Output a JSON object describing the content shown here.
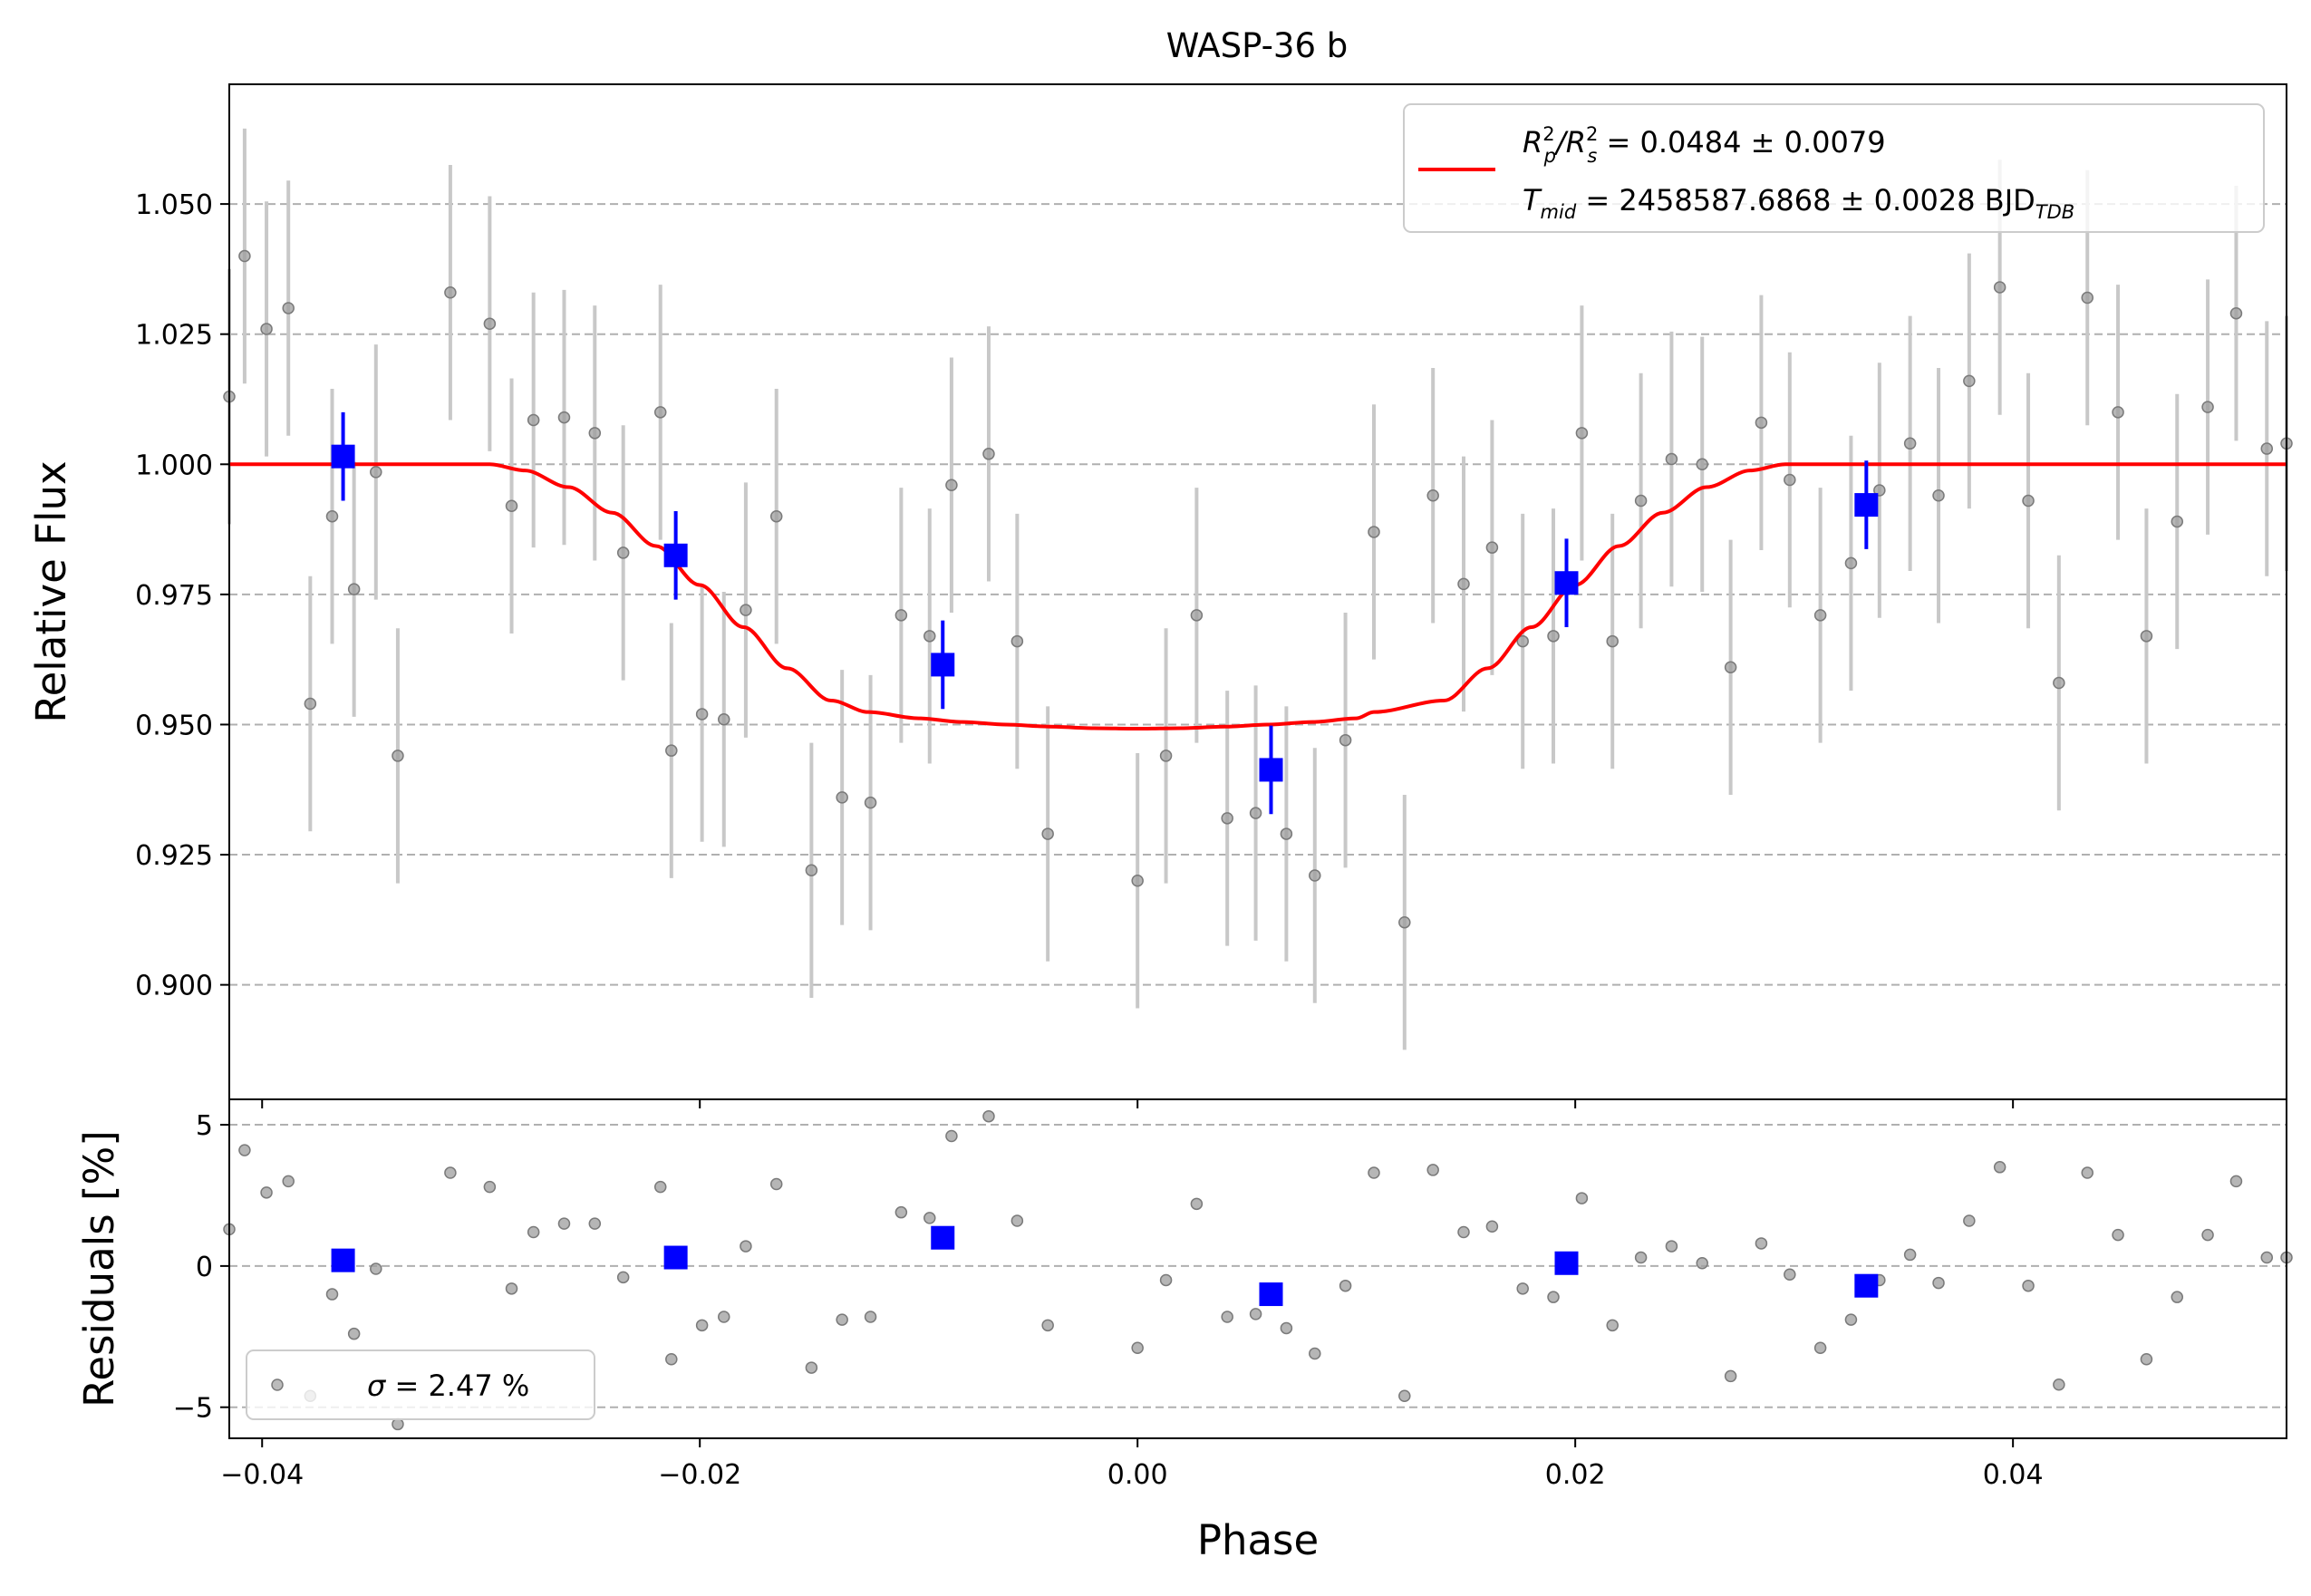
{
  "chart_data": [
    {
      "type": "scatter",
      "title": "WASP-36 b",
      "xlabel": "",
      "ylabel": "Relative Flux",
      "xlim": [
        -0.0415,
        0.0525
      ],
      "ylim": [
        0.878,
        1.073
      ],
      "xticks": [
        -0.04,
        -0.02,
        0.0,
        0.02,
        0.04
      ],
      "xtick_labels": [
        "−0.04",
        "−0.02",
        "0.00",
        "0.02",
        "0.04"
      ],
      "yticks": [
        0.9,
        0.925,
        0.95,
        0.975,
        1.0,
        1.025,
        1.05
      ],
      "ytick_labels": [
        "0.900",
        "0.925",
        "0.950",
        "0.975",
        "1.000",
        "1.025",
        "1.050"
      ],
      "grid": "horizontal dashed",
      "legend_position": "top-right",
      "colors": {
        "data": "#9e9e9e",
        "errorbar": "#c8c8c8",
        "binned": "#0000ff",
        "model": "#ff0000",
        "grid": "#b0b0b0"
      },
      "series": [
        {
          "kind": "raw",
          "err": 0.0245,
          "x": [
            -0.0415,
            -0.0408,
            -0.0398,
            -0.0388,
            -0.0378,
            -0.0368,
            -0.0358,
            -0.0348,
            -0.0338,
            -0.0314,
            -0.0296,
            -0.0286,
            -0.0276,
            -0.0262,
            -0.0248,
            -0.0235,
            -0.0218,
            -0.0213,
            -0.0199,
            -0.0189,
            -0.0179,
            -0.0165,
            -0.0149,
            -0.0135,
            -0.0122,
            -0.0108,
            -0.0095,
            -0.0085,
            -0.0068,
            -0.0055,
            -0.0041,
            0.0,
            0.0013,
            0.0027,
            0.0041,
            0.0054,
            0.0068,
            0.0081,
            0.0095,
            0.0108,
            0.0122,
            0.0135,
            0.0149,
            0.0162,
            0.0176,
            0.019,
            0.0203,
            0.0217,
            0.023,
            0.0244,
            0.0258,
            0.0271,
            0.0285,
            0.0298,
            0.0312,
            0.0326,
            0.0339,
            0.0353,
            0.0366,
            0.038,
            0.0394,
            0.0407,
            0.0421,
            0.0434,
            0.0448,
            0.0461,
            0.0475,
            0.0489,
            0.0502,
            0.0516,
            0.0525
          ],
          "y": [
            1.013,
            1.04,
            1.026,
            1.03,
            0.954,
            0.99,
            0.976,
            0.9985,
            0.944,
            1.033,
            1.027,
            0.992,
            1.0085,
            1.009,
            1.006,
            0.983,
            1.01,
            0.945,
            0.952,
            0.951,
            0.972,
            0.99,
            0.922,
            0.936,
            0.935,
            0.971,
            0.967,
            0.996,
            1.002,
            0.966,
            0.929,
            0.92,
            0.944,
            0.971,
            0.932,
            0.933,
            0.929,
            0.921,
            0.947,
            0.987,
            0.912,
            0.994,
            0.977,
            0.984,
            0.966,
            0.967,
            1.006,
            0.966,
            0.993,
            1.001,
            1.0,
            0.961,
            1.008,
            0.997,
            0.971,
            0.981,
            0.995,
            1.004,
            0.994,
            1.016,
            1.034,
            0.993,
            0.958,
            1.032,
            1.01,
            0.967,
            0.989,
            1.011,
            1.029,
            1.003,
            1.004
          ]
        },
        {
          "kind": "binned",
          "err": 0.0085,
          "x": [
            -0.0363,
            -0.0211,
            -0.0089,
            0.0061,
            0.0196,
            0.0333
          ],
          "y": [
            1.0015,
            0.9825,
            0.9615,
            0.9413,
            0.9772,
            0.9922
          ]
        },
        {
          "kind": "model",
          "ld_u": 0.35,
          "x": [
            -0.0415,
            -0.0296,
            -0.028,
            -0.026,
            -0.024,
            -0.022,
            -0.02,
            -0.018,
            -0.016,
            -0.014,
            -0.0123,
            -0.01,
            -0.008,
            -0.006,
            -0.004,
            -0.002,
            0.0,
            0.002,
            0.004,
            0.006,
            0.008,
            0.01,
            0.0108,
            0.014,
            0.016,
            0.018,
            0.02,
            0.022,
            0.024,
            0.026,
            0.028,
            0.0296,
            0.0525
          ],
          "y": [
            1.0,
            1.0,
            0.9988,
            0.9956,
            0.9907,
            0.9843,
            0.9768,
            0.9687,
            0.9608,
            0.9546,
            0.9524,
            0.9512,
            0.9505,
            0.95,
            0.9496,
            0.9493,
            0.9492,
            0.9493,
            0.9496,
            0.95,
            0.9505,
            0.9512,
            0.9524,
            0.9546,
            0.9608,
            0.9687,
            0.9768,
            0.9843,
            0.9907,
            0.9956,
            0.9988,
            1.0,
            1.0
          ]
        }
      ],
      "legend": {
        "line1_symbol": "R",
        "line1_sub1": "p",
        "line1_sup1": "2",
        "line1_slash": "/",
        "line1_symbol2": "R",
        "line1_sub2": "s",
        "line1_sup2": "2",
        "line1_value": " = 0.0484 ± 0.0079",
        "line2_symbol": "T",
        "line2_sub": "mid",
        "line2_value": " = 2458587.6868 ± 0.0028 BJD",
        "line2_unit_sub": "TDB"
      }
    },
    {
      "type": "scatter",
      "title": "",
      "xlabel": "Phase",
      "ylabel": "Residuals [%]",
      "xlim": [
        -0.0415,
        0.0525
      ],
      "ylim": [
        -6.1,
        5.9
      ],
      "yticks": [
        -5,
        0,
        5
      ],
      "ytick_labels": [
        "−5",
        "0",
        "5"
      ],
      "grid": "horizontal dashed",
      "legend_position": "bottom-left",
      "legend": {
        "symbol": "σ",
        "value": " = 2.47 %"
      },
      "series": [
        {
          "kind": "raw",
          "x": [
            -0.0415,
            -0.0408,
            -0.0398,
            -0.0388,
            -0.0378,
            -0.0368,
            -0.0358,
            -0.0348,
            -0.0338,
            -0.0314,
            -0.0296,
            -0.0286,
            -0.0276,
            -0.0262,
            -0.0248,
            -0.0235,
            -0.0218,
            -0.0213,
            -0.0199,
            -0.0189,
            -0.0179,
            -0.0165,
            -0.0149,
            -0.0135,
            -0.0122,
            -0.0108,
            -0.0095,
            -0.0085,
            -0.0068,
            -0.0055,
            -0.0041,
            0.0,
            0.0013,
            0.0027,
            0.0041,
            0.0054,
            0.0068,
            0.0081,
            0.0095,
            0.0108,
            0.0122,
            0.0135,
            0.0149,
            0.0162,
            0.0176,
            0.019,
            0.0203,
            0.0217,
            0.023,
            0.0244,
            0.0258,
            0.0271,
            0.0285,
            0.0298,
            0.0312,
            0.0326,
            0.0339,
            0.0353,
            0.0366,
            0.038,
            0.0394,
            0.0407,
            0.0421,
            0.0434,
            0.0448,
            0.0461,
            0.0475,
            0.0489,
            0.0502,
            0.0516,
            0.0525
          ],
          "y": [
            1.3,
            4.1,
            2.6,
            3.0,
            -4.6,
            -1.0,
            -2.4,
            -0.1,
            -5.6,
            3.3,
            2.8,
            -0.8,
            1.2,
            1.5,
            1.5,
            -0.4,
            2.8,
            -3.3,
            -2.1,
            -1.8,
            0.7,
            2.9,
            -3.6,
            -1.9,
            -1.8,
            1.9,
            1.7,
            4.6,
            5.3,
            1.6,
            -2.1,
            -2.9,
            -0.5,
            2.2,
            -1.8,
            -1.7,
            -2.2,
            -3.1,
            -0.7,
            3.3,
            -4.6,
            3.4,
            1.2,
            1.4,
            -0.8,
            -1.1,
            2.4,
            -2.1,
            0.3,
            0.7,
            0.1,
            -3.9,
            0.8,
            -0.3,
            -2.9,
            -1.9,
            -0.5,
            0.4,
            -0.6,
            1.6,
            3.5,
            -0.7,
            -4.2,
            3.3,
            1.1,
            -3.3,
            -1.1,
            1.1,
            3.0,
            0.3,
            0.3
          ]
        },
        {
          "kind": "binned",
          "x": [
            -0.0363,
            -0.0211,
            -0.0089,
            0.0061,
            0.0196,
            0.0333
          ],
          "y": [
            0.2,
            0.3,
            1.0,
            -1.0,
            0.1,
            -0.7
          ]
        }
      ]
    }
  ]
}
